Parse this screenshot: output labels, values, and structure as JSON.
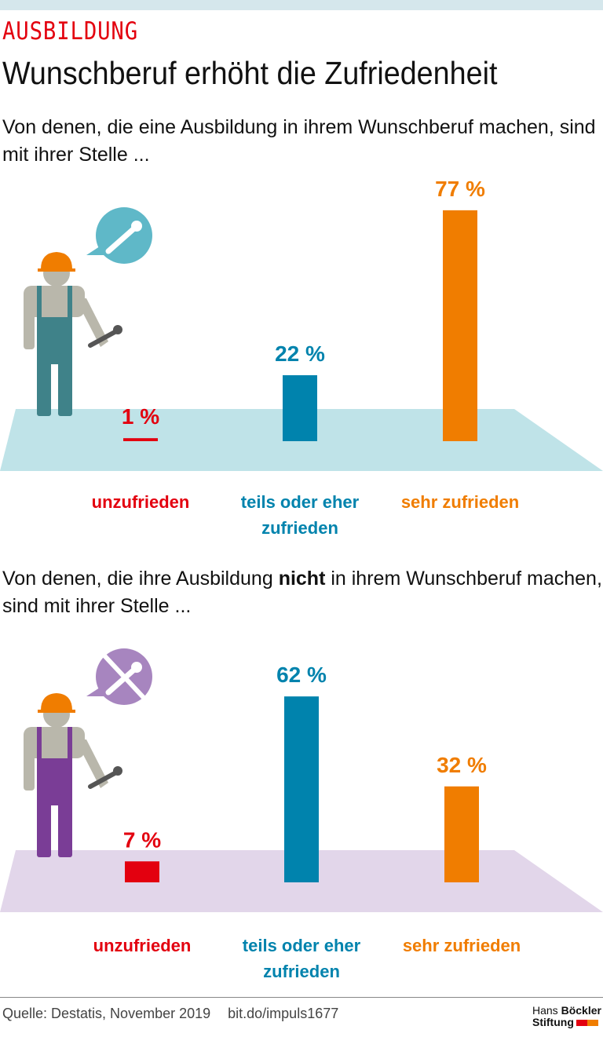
{
  "kicker": "AUSBILDUNG",
  "title": "Wunschberuf erhöht die Zufriedenheit",
  "colors": {
    "red": "#e3000f",
    "blue": "#0083ad",
    "orange": "#f07d00",
    "floor1": "#bfe3e8",
    "floor2": "#e2d6ea",
    "overall1": "#3f8289",
    "overall2": "#7a3d96"
  },
  "chart_data": [
    {
      "type": "bar",
      "subtitle": "Von denen, die eine Ausbildung in ihrem Wunschberuf machen, sind mit ihrer Stelle ...",
      "categories": [
        "unzufrieden",
        "teils oder eher zufrieden",
        "sehr zufrieden"
      ],
      "values": [
        1,
        22,
        77
      ],
      "labels": [
        "1 %",
        "22 %",
        "77 %"
      ],
      "unit": "%",
      "icon": "worker-with-wrench-speech-bubble"
    },
    {
      "type": "bar",
      "subtitle_pre": "Von denen, die ihre Ausbildung ",
      "subtitle_bold": "nicht",
      "subtitle_post": " in ihrem Wunschberuf machen, sind mit ihrer Stelle ...",
      "categories": [
        "unzufrieden",
        "teils oder eher zufrieden",
        "sehr zufrieden"
      ],
      "values": [
        7,
        62,
        32
      ],
      "labels": [
        "7 %",
        "62 %",
        "32 %"
      ],
      "unit": "%",
      "icon": "worker-with-crossed-wrench-speech-bubble"
    }
  ],
  "footer": {
    "source": "Quelle: Destatis, November 2019",
    "link": "bit.do/impuls1677",
    "logo_line1_a": "Hans ",
    "logo_line1_b": "Böckler",
    "logo_line2": "Stiftung"
  }
}
